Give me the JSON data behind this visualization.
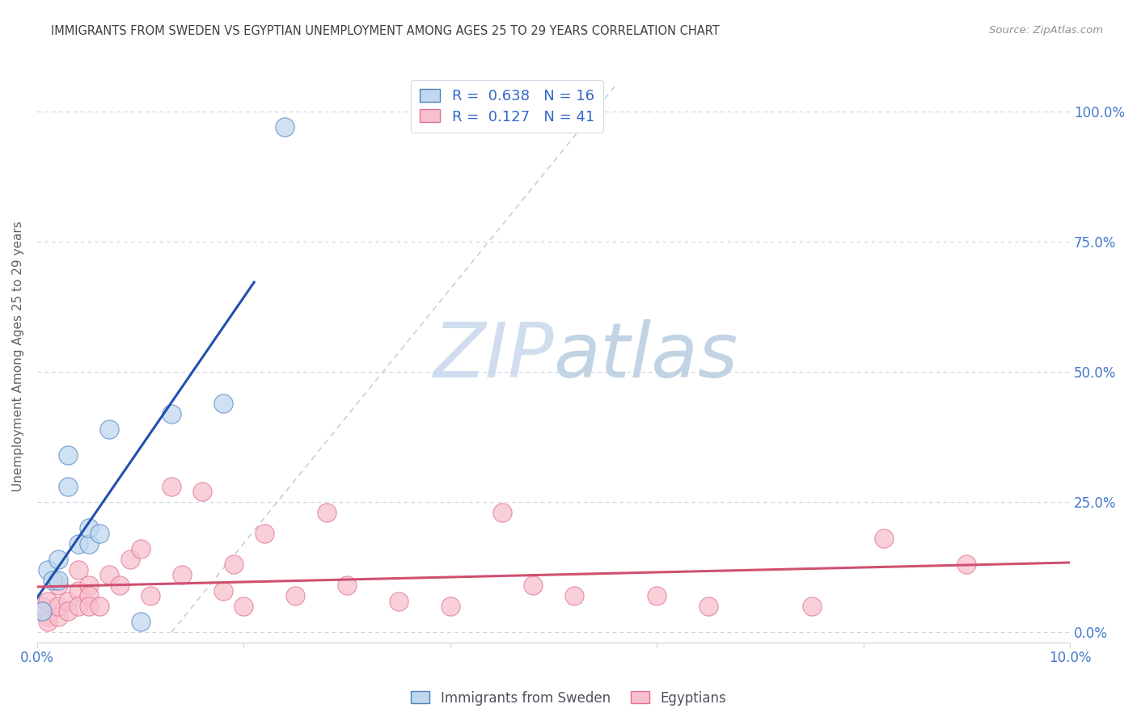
{
  "title": "IMMIGRANTS FROM SWEDEN VS EGYPTIAN UNEMPLOYMENT AMONG AGES 25 TO 29 YEARS CORRELATION CHART",
  "source": "Source: ZipAtlas.com",
  "ylabel": "Unemployment Among Ages 25 to 29 years",
  "xlim": [
    0.0,
    0.1
  ],
  "ylim": [
    -0.02,
    1.08
  ],
  "yticks": [
    0.0,
    0.25,
    0.5,
    0.75,
    1.0
  ],
  "yticklabels_right": [
    "0.0%",
    "25.0%",
    "50.0%",
    "75.0%",
    "100.0%"
  ],
  "xticks": [
    0.0,
    0.02,
    0.04,
    0.06,
    0.08,
    0.1
  ],
  "xticklabels": [
    "0.0%",
    "",
    "",
    "",
    "",
    "10.0%"
  ],
  "sweden_R": 0.638,
  "sweden_N": 16,
  "egypt_R": 0.127,
  "egypt_N": 41,
  "sweden_fill_color": "#c0d8f0",
  "egypt_fill_color": "#f8c0cc",
  "sweden_edge_color": "#5080c0",
  "egypt_edge_color": "#e07090",
  "sweden_line_color": "#2050b0",
  "egypt_line_color": "#d05070",
  "diagonal_color": "#b8c8e0",
  "watermark_zip": "ZIP",
  "watermark_atlas": "atlas",
  "watermark_color_zip": "#d0dce8",
  "watermark_color_atlas": "#c0ccdc",
  "sweden_x": [
    0.0005,
    0.001,
    0.0015,
    0.002,
    0.002,
    0.003,
    0.003,
    0.004,
    0.005,
    0.005,
    0.006,
    0.007,
    0.01,
    0.013,
    0.018,
    0.024
  ],
  "sweden_y": [
    0.04,
    0.12,
    0.1,
    0.14,
    0.1,
    0.34,
    0.28,
    0.17,
    0.17,
    0.2,
    0.19,
    0.39,
    0.02,
    0.42,
    0.44,
    0.97
  ],
  "egypt_x": [
    0.0005,
    0.001,
    0.001,
    0.001,
    0.002,
    0.002,
    0.002,
    0.003,
    0.003,
    0.004,
    0.004,
    0.004,
    0.005,
    0.005,
    0.005,
    0.006,
    0.007,
    0.008,
    0.009,
    0.01,
    0.011,
    0.013,
    0.014,
    0.016,
    0.018,
    0.019,
    0.02,
    0.022,
    0.025,
    0.028,
    0.03,
    0.035,
    0.04,
    0.045,
    0.048,
    0.052,
    0.06,
    0.065,
    0.075,
    0.082,
    0.09
  ],
  "egypt_y": [
    0.05,
    0.03,
    0.06,
    0.02,
    0.03,
    0.05,
    0.09,
    0.06,
    0.04,
    0.08,
    0.05,
    0.12,
    0.09,
    0.07,
    0.05,
    0.05,
    0.11,
    0.09,
    0.14,
    0.16,
    0.07,
    0.28,
    0.11,
    0.27,
    0.08,
    0.13,
    0.05,
    0.19,
    0.07,
    0.23,
    0.09,
    0.06,
    0.05,
    0.23,
    0.09,
    0.07,
    0.07,
    0.05,
    0.05,
    0.18,
    0.13
  ],
  "legend_r_color": "#3366cc",
  "legend_n_color": "#3366cc",
  "tick_color": "#9aacbe",
  "grid_color": "#c8d4de",
  "right_tick_color": "#4477cc",
  "x_tick_color": "#4477cc"
}
